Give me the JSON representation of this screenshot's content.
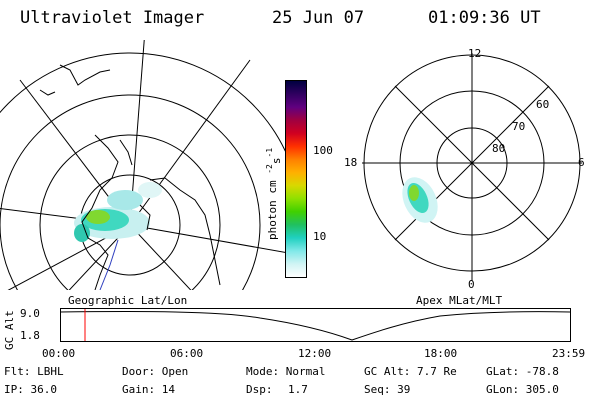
{
  "header": {
    "title": "Ultraviolet Imager",
    "date": "25 Jun 07",
    "time": "01:09:36 UT"
  },
  "left_panel": {
    "caption": "Geographic Lat/Lon"
  },
  "right_panel": {
    "caption": "Apex MLat/MLT",
    "mlt_labels": {
      "top": "12",
      "bottom": "0",
      "left": "18",
      "right": "6"
    },
    "mlat_labels": [
      "60",
      "70",
      "80"
    ]
  },
  "colorbar": {
    "unit_label": "photon cm",
    "unit_exp1": "-2",
    "unit_s": "s",
    "unit_exp2": "-1",
    "ticks": [
      "100",
      "10"
    ],
    "colors": [
      "#000040",
      "#300060",
      "#600080",
      "#a00040",
      "#d00020",
      "#ff3000",
      "#ff8000",
      "#ffb000",
      "#d8d800",
      "#90e000",
      "#40d000",
      "#20c060",
      "#20d0c0",
      "#80e8e8",
      "#d0f4f4",
      "#ffffff"
    ]
  },
  "altitude_plot": {
    "ylabel": "GC Alt",
    "yticks": [
      "9.0",
      "1.8"
    ],
    "xticks": [
      "00:00",
      "06:00",
      "12:00",
      "18:00",
      "23:59"
    ],
    "marker_color": "#ff0000"
  },
  "footer": {
    "col1": [
      "Flt: LBHL",
      "IP: 36.0"
    ],
    "col2": [
      "Door: Open",
      "Gain: 14"
    ],
    "col3a": [
      "Mode: Normal",
      "Dsp:"
    ],
    "col3b": [
      "",
      "1.7"
    ],
    "col4": [
      "GC Alt: 7.7 Re",
      "Seq: 39"
    ],
    "col5": [
      "GLat: -78.8",
      "GLon: 305.0"
    ]
  }
}
